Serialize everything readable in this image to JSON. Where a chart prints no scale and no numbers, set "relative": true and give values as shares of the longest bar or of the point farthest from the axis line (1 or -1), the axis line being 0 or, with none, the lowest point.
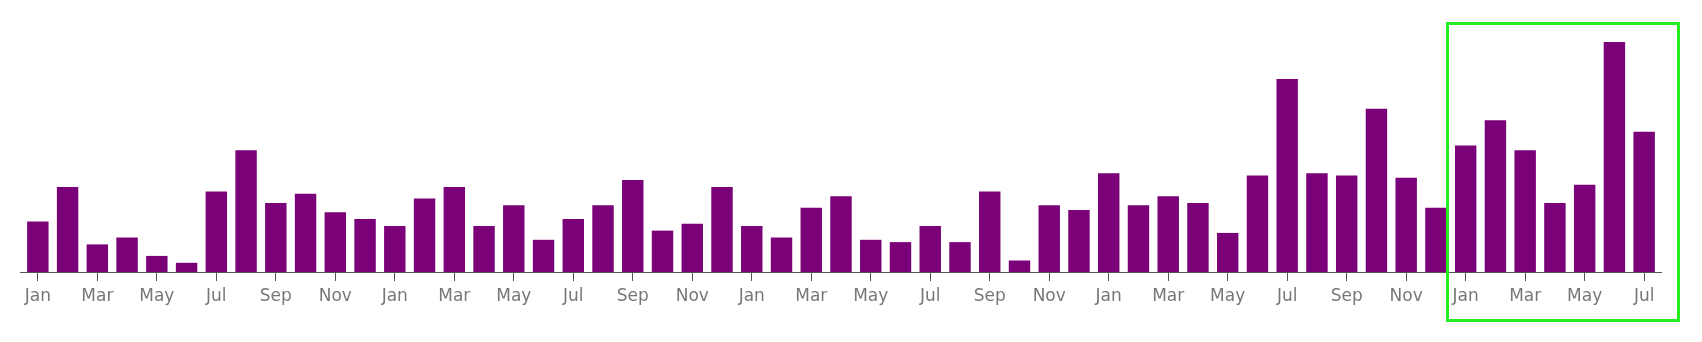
{
  "chart_data": {
    "type": "bar",
    "relative": true,
    "color": "#7a0177",
    "grid": false,
    "legend": false,
    "categories": [
      "Jan",
      null,
      "Mar",
      null,
      "May",
      null,
      "Jul",
      null,
      "Sep",
      null,
      "Nov",
      null,
      "Jan",
      null,
      "Mar",
      null,
      "May",
      null,
      "Jul",
      null,
      "Sep",
      null,
      "Nov",
      null,
      "Jan",
      null,
      "Mar",
      null,
      "May",
      null,
      "Jul",
      null,
      "Sep",
      null,
      "Nov",
      null,
      "Jan",
      null,
      "Mar",
      null,
      "May",
      null,
      "Jul",
      null,
      "Sep",
      null,
      "Nov",
      null,
      "Jan",
      null,
      "Mar",
      null,
      "May",
      null,
      "Jul"
    ],
    "values": [
      0.22,
      0.37,
      0.12,
      0.15,
      0.07,
      0.04,
      0.35,
      0.53,
      0.3,
      0.34,
      0.26,
      0.23,
      0.2,
      0.32,
      0.37,
      0.2,
      0.29,
      0.14,
      0.23,
      0.29,
      0.4,
      0.18,
      0.21,
      0.37,
      0.2,
      0.15,
      0.28,
      0.33,
      0.14,
      0.13,
      0.2,
      0.13,
      0.35,
      0.05,
      0.29,
      0.27,
      0.43,
      0.29,
      0.33,
      0.3,
      0.17,
      0.42,
      0.84,
      0.43,
      0.42,
      0.71,
      0.41,
      0.28,
      0.55,
      0.66,
      0.53,
      0.3,
      0.38,
      1,
      0.61
    ]
  }
}
